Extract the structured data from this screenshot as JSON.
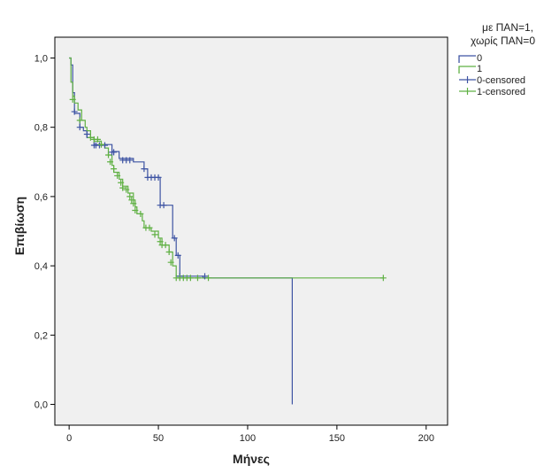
{
  "chart_data": {
    "type": "line",
    "xlabel": "Μήνες",
    "ylabel": "Επιβίωση",
    "xlim": [
      -8,
      212
    ],
    "ylim": [
      -0.06,
      1.06
    ],
    "x_ticks": [
      0,
      50,
      100,
      150,
      200
    ],
    "y_ticks": [
      0.0,
      0.2,
      0.4,
      0.6,
      0.8,
      1.0
    ],
    "x_tick_labels": [
      "0",
      "50",
      "100",
      "150",
      "200"
    ],
    "y_tick_labels": [
      "0,0",
      "0,2",
      "0,4",
      "0,6",
      "0,8",
      "1,0"
    ],
    "grid": false,
    "plot_background": "#f0f0f0",
    "legend": {
      "position": "top-right",
      "title_lines": [
        "με ΠΑΝ=1,",
        "χωρίς ΠΑΝ=0"
      ],
      "entries": [
        "0",
        "1",
        "0-censored",
        "1-censored"
      ]
    },
    "series": [
      {
        "name": "0",
        "color": "#3e54a3",
        "step": [
          [
            0,
            1.0
          ],
          [
            1,
            0.98
          ],
          [
            2,
            0.9
          ],
          [
            3,
            0.84
          ],
          [
            6,
            0.8
          ],
          [
            8,
            0.79
          ],
          [
            10,
            0.77
          ],
          [
            14,
            0.75
          ],
          [
            20,
            0.75
          ],
          [
            24,
            0.73
          ],
          [
            28,
            0.71
          ],
          [
            32,
            0.71
          ],
          [
            36,
            0.7
          ],
          [
            42,
            0.68
          ],
          [
            44,
            0.655
          ],
          [
            51,
            0.575
          ],
          [
            55,
            0.575
          ],
          [
            58,
            0.48
          ],
          [
            60,
            0.43
          ],
          [
            62,
            0.37
          ],
          [
            75,
            0.365
          ],
          [
            125,
            0.365
          ],
          [
            125,
            0.0
          ]
        ],
        "censored": [
          [
            3,
            0.845
          ],
          [
            6,
            0.8
          ],
          [
            10,
            0.78
          ],
          [
            14,
            0.748
          ],
          [
            15,
            0.748
          ],
          [
            17,
            0.748
          ],
          [
            20,
            0.748
          ],
          [
            24,
            0.728
          ],
          [
            25,
            0.728
          ],
          [
            30,
            0.705
          ],
          [
            32,
            0.705
          ],
          [
            34,
            0.705
          ],
          [
            42,
            0.68
          ],
          [
            44,
            0.655
          ],
          [
            46,
            0.655
          ],
          [
            48,
            0.655
          ],
          [
            50,
            0.655
          ],
          [
            51,
            0.575
          ],
          [
            53,
            0.575
          ],
          [
            59,
            0.48
          ],
          [
            61,
            0.43
          ],
          [
            62,
            0.37
          ],
          [
            76,
            0.37
          ]
        ]
      },
      {
        "name": "1",
        "color": "#5fb043",
        "step": [
          [
            0,
            1.0
          ],
          [
            1,
            0.93
          ],
          [
            2,
            0.89
          ],
          [
            3,
            0.87
          ],
          [
            5,
            0.85
          ],
          [
            7,
            0.82
          ],
          [
            9,
            0.8
          ],
          [
            10,
            0.79
          ],
          [
            12,
            0.77
          ],
          [
            14,
            0.76
          ],
          [
            18,
            0.75
          ],
          [
            20,
            0.74
          ],
          [
            22,
            0.72
          ],
          [
            24,
            0.69
          ],
          [
            25,
            0.67
          ],
          [
            28,
            0.65
          ],
          [
            30,
            0.63
          ],
          [
            33,
            0.61
          ],
          [
            36,
            0.59
          ],
          [
            37,
            0.57
          ],
          [
            38,
            0.55
          ],
          [
            41,
            0.53
          ],
          [
            42,
            0.51
          ],
          [
            46,
            0.5
          ],
          [
            50,
            0.48
          ],
          [
            52,
            0.46
          ],
          [
            56,
            0.44
          ],
          [
            58,
            0.4
          ],
          [
            60,
            0.37
          ],
          [
            64,
            0.365
          ],
          [
            176,
            0.365
          ]
        ],
        "censored": [
          [
            2,
            0.88
          ],
          [
            6,
            0.82
          ],
          [
            12,
            0.77
          ],
          [
            14,
            0.765
          ],
          [
            16,
            0.765
          ],
          [
            18,
            0.75
          ],
          [
            22,
            0.72
          ],
          [
            23,
            0.7
          ],
          [
            25,
            0.68
          ],
          [
            27,
            0.66
          ],
          [
            29,
            0.64
          ],
          [
            30,
            0.625
          ],
          [
            32,
            0.62
          ],
          [
            34,
            0.6
          ],
          [
            35,
            0.59
          ],
          [
            36,
            0.58
          ],
          [
            37,
            0.56
          ],
          [
            40,
            0.55
          ],
          [
            43,
            0.51
          ],
          [
            45,
            0.51
          ],
          [
            48,
            0.49
          ],
          [
            51,
            0.47
          ],
          [
            52,
            0.46
          ],
          [
            54,
            0.46
          ],
          [
            56,
            0.44
          ],
          [
            57,
            0.41
          ],
          [
            60,
            0.365
          ],
          [
            62,
            0.365
          ],
          [
            64,
            0.365
          ],
          [
            66,
            0.365
          ],
          [
            68,
            0.365
          ],
          [
            72,
            0.365
          ],
          [
            78,
            0.365
          ],
          [
            176,
            0.365
          ]
        ]
      }
    ]
  }
}
